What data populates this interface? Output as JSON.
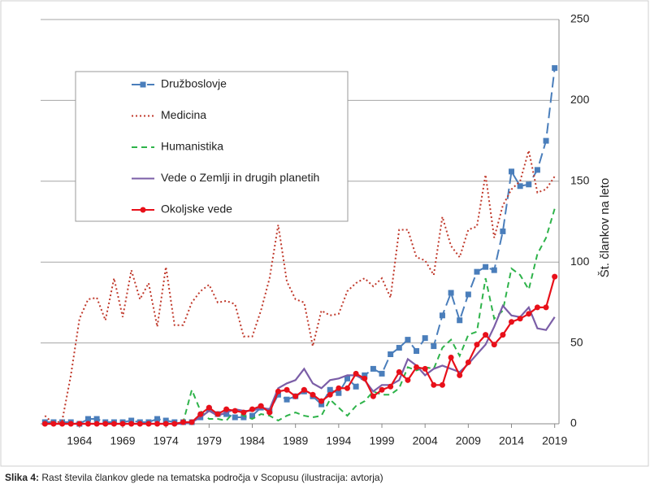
{
  "chart_data": {
    "type": "line",
    "y_label": "Št. člankov na leto",
    "x": [
      1960,
      1961,
      1962,
      1963,
      1964,
      1965,
      1966,
      1967,
      1968,
      1969,
      1970,
      1971,
      1972,
      1973,
      1974,
      1975,
      1976,
      1977,
      1978,
      1979,
      1980,
      1981,
      1982,
      1983,
      1984,
      1985,
      1986,
      1987,
      1988,
      1989,
      1990,
      1991,
      1992,
      1993,
      1994,
      1995,
      1996,
      1997,
      1998,
      1999,
      2000,
      2001,
      2002,
      2003,
      2004,
      2005,
      2006,
      2007,
      2008,
      2009,
      2010,
      2011,
      2012,
      2013,
      2014,
      2015,
      2016,
      2017,
      2018,
      2019
    ],
    "xlim": [
      1959.5,
      2019.5
    ],
    "xticks": [
      1964,
      1969,
      1974,
      1979,
      1984,
      1989,
      1994,
      1999,
      2004,
      2009,
      2014,
      2019
    ],
    "ylim": [
      0,
      250
    ],
    "yticks": [
      0,
      50,
      100,
      150,
      200,
      250
    ],
    "grid": true,
    "y_axis_side": "right",
    "legend": "upper left",
    "series": [
      {
        "name": "Družboslovje",
        "color": "#4a7ebb",
        "style": "dashed",
        "marker": "square",
        "values": [
          1,
          1,
          1,
          1,
          0,
          3,
          3,
          1,
          1,
          1,
          2,
          1,
          1,
          3,
          2,
          1,
          1,
          1,
          4,
          9,
          6,
          6,
          4,
          4,
          5,
          10,
          8,
          18,
          15,
          17,
          20,
          17,
          12,
          21,
          19,
          28,
          23,
          30,
          34,
          31,
          43,
          47,
          52,
          45,
          53,
          48,
          67,
          81,
          64,
          80,
          94,
          97,
          95,
          119,
          156,
          147,
          148,
          157,
          175,
          220
        ]
      },
      {
        "name": "Medicina",
        "color": "#c0392b",
        "style": "dotted",
        "marker": "none",
        "values": [
          5,
          0,
          2,
          30,
          65,
          77,
          78,
          64,
          90,
          66,
          95,
          77,
          87,
          60,
          97,
          61,
          61,
          75,
          82,
          86,
          75,
          76,
          74,
          54,
          54,
          70,
          90,
          123,
          88,
          77,
          75,
          48,
          70,
          67,
          68,
          82,
          87,
          90,
          85,
          90,
          78,
          120,
          120,
          103,
          101,
          92,
          128,
          110,
          103,
          120,
          122,
          154,
          115,
          135,
          145,
          150,
          169,
          143,
          145,
          153
        ]
      },
      {
        "name": "Humanistika",
        "color": "#2eb34a",
        "style": "dashed-short",
        "marker": "none",
        "values": [
          0,
          0,
          0,
          0,
          0,
          0,
          0,
          0,
          0,
          0,
          0,
          0,
          0,
          0,
          0,
          0,
          1,
          21,
          8,
          3,
          3,
          2,
          8,
          5,
          3,
          6,
          5,
          2,
          5,
          7,
          5,
          4,
          5,
          15,
          10,
          5,
          11,
          14,
          20,
          18,
          18,
          22,
          35,
          33,
          35,
          34,
          47,
          52,
          42,
          55,
          57,
          90,
          65,
          70,
          96,
          92,
          83,
          105,
          115,
          133
        ]
      },
      {
        "name": "Vede o Zemlji in drugih planetih",
        "color": "#7b5ea7",
        "style": "solid",
        "marker": "none",
        "values": [
          0,
          0,
          0,
          0,
          0,
          0,
          0,
          0,
          0,
          0,
          0,
          0,
          0,
          0,
          0,
          0,
          0,
          1,
          4,
          8,
          5,
          7,
          9,
          8,
          8,
          10,
          9,
          22,
          25,
          27,
          34,
          25,
          22,
          27,
          28,
          30,
          30,
          27,
          20,
          24,
          24,
          27,
          40,
          36,
          30,
          34,
          36,
          34,
          32,
          37,
          43,
          49,
          60,
          73,
          67,
          66,
          72,
          59,
          58,
          66
        ]
      },
      {
        "name": "Okoljske vede",
        "color": "#e8101a",
        "style": "solid",
        "marker": "circle",
        "values": [
          0,
          0,
          0,
          0,
          0,
          0,
          0,
          0,
          0,
          0,
          0,
          0,
          0,
          0,
          0,
          0,
          1,
          1,
          6,
          10,
          6,
          9,
          8,
          7,
          9,
          11,
          7,
          20,
          21,
          17,
          21,
          18,
          14,
          18,
          22,
          22,
          31,
          28,
          17,
          21,
          23,
          32,
          27,
          35,
          34,
          24,
          24,
          41,
          30,
          38,
          49,
          55,
          49,
          55,
          63,
          65,
          68,
          72,
          72,
          91
        ]
      }
    ]
  },
  "caption": {
    "label": "Slika 4:",
    "text": "Rast števila člankov glede na tematska področja v Scopusu (ilustracija: avtorja)"
  }
}
